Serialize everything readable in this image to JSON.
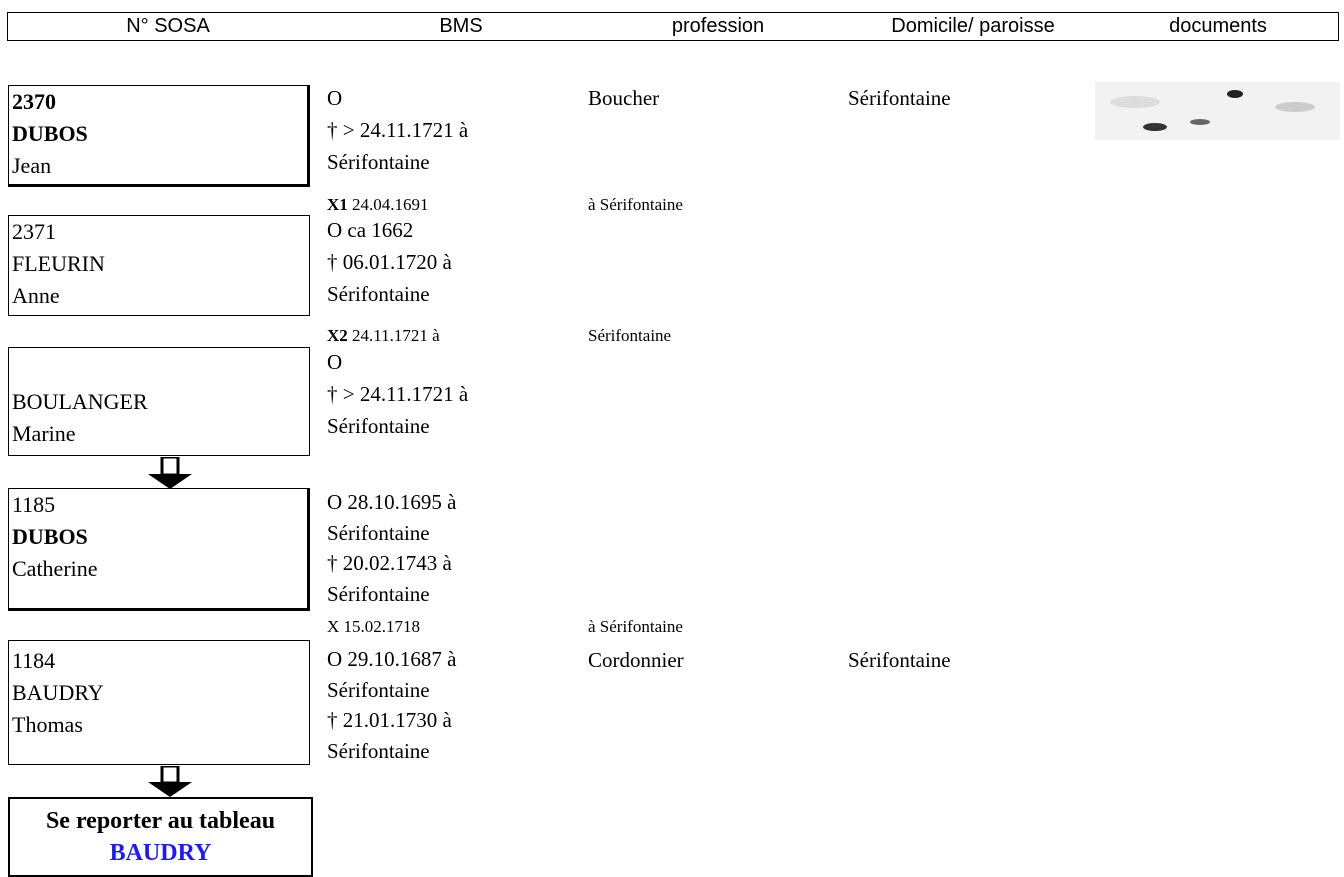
{
  "header": {
    "columns": [
      "N° SOSA",
      "BMS",
      "profession",
      "Domicile/ paroisse",
      "documents"
    ]
  },
  "rows": [
    {
      "sosa": "2370",
      "name": "DUBOS",
      "given": "Jean",
      "bms": [
        "O",
        "† > 24.11.1721 à",
        "Sérifontaine"
      ],
      "profession": "Boucher",
      "domicile": "Sérifontaine"
    },
    {
      "label": "X1",
      "date": "24.04.1691",
      "place": "à Sérifontaine"
    },
    {
      "sosa": "2371",
      "name": "FLEURIN",
      "given": "Anne",
      "bms": [
        "O ca 1662",
        "† 06.01.1720 à",
        "Sérifontaine"
      ]
    },
    {
      "label": "X2",
      "date": "24.11.1721 à",
      "place": "Sérifontaine"
    },
    {
      "name": "BOULANGER",
      "given": "Marine",
      "bms": [
        "O",
        "† > 24.11.1721 à",
        "Sérifontaine"
      ]
    },
    {
      "sosa": "1185",
      "name": "DUBOS",
      "given": "Catherine",
      "bms": [
        "O 28.10.1695 à",
        "Sérifontaine",
        "† 20.02.1743 à",
        "Sérifontaine"
      ]
    },
    {
      "label": "X",
      "date": "15.02.1718",
      "place": "à Sérifontaine"
    },
    {
      "sosa": "1184",
      "name": "BAUDRY",
      "given": "Thomas",
      "bms": [
        "O 29.10.1687 à",
        "Sérifontaine",
        "† 21.01.1730 à",
        "Sérifontaine"
      ],
      "profession": "Cordonnier",
      "domicile": "Sérifontaine"
    }
  ],
  "reference": {
    "text": "Se reporter au tableau",
    "link": "BAUDRY"
  }
}
